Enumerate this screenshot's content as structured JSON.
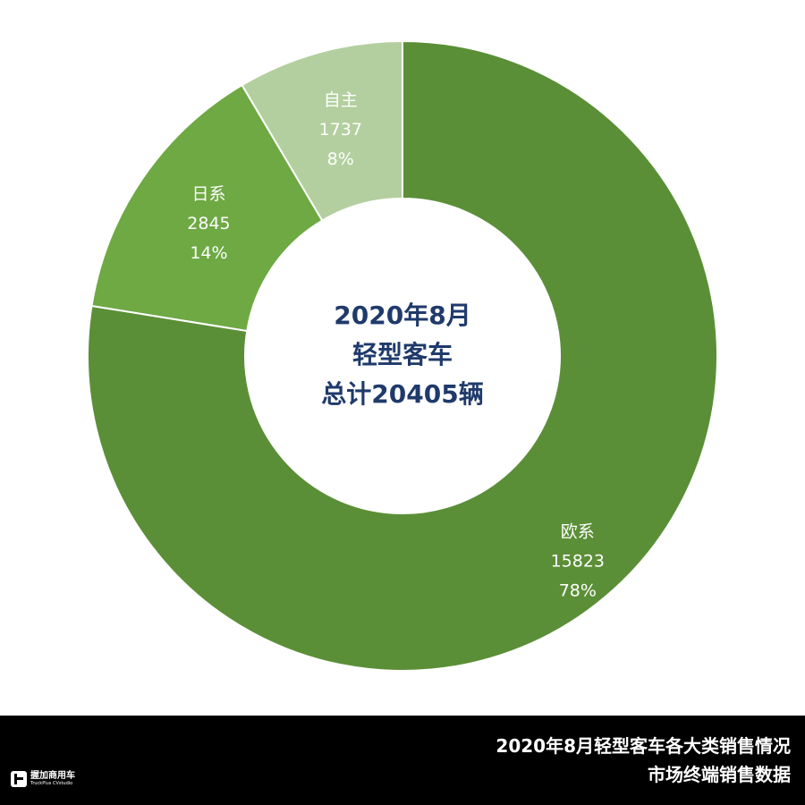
{
  "chart_data": {
    "type": "pie",
    "donut": true,
    "center_text": [
      "2020年8月",
      "轻型客车",
      "总计20405辆"
    ],
    "slices": [
      {
        "name": "欧系",
        "value": 15823,
        "percent_label": "78%",
        "color": "#5b8f37"
      },
      {
        "name": "日系",
        "value": 2845,
        "percent_label": "14%",
        "color": "#6ea943"
      },
      {
        "name": "自主",
        "value": 1737,
        "percent_label": "8%",
        "color": "#b3cf9f"
      }
    ],
    "total": 20405,
    "legend": "none"
  },
  "footer": {
    "line1": "2020年8月轻型客车各大类销售情况",
    "line2": "市场终端销售数据"
  },
  "logo": {
    "cn": "握加商用车",
    "en": "TruckPlus CVstudio"
  }
}
